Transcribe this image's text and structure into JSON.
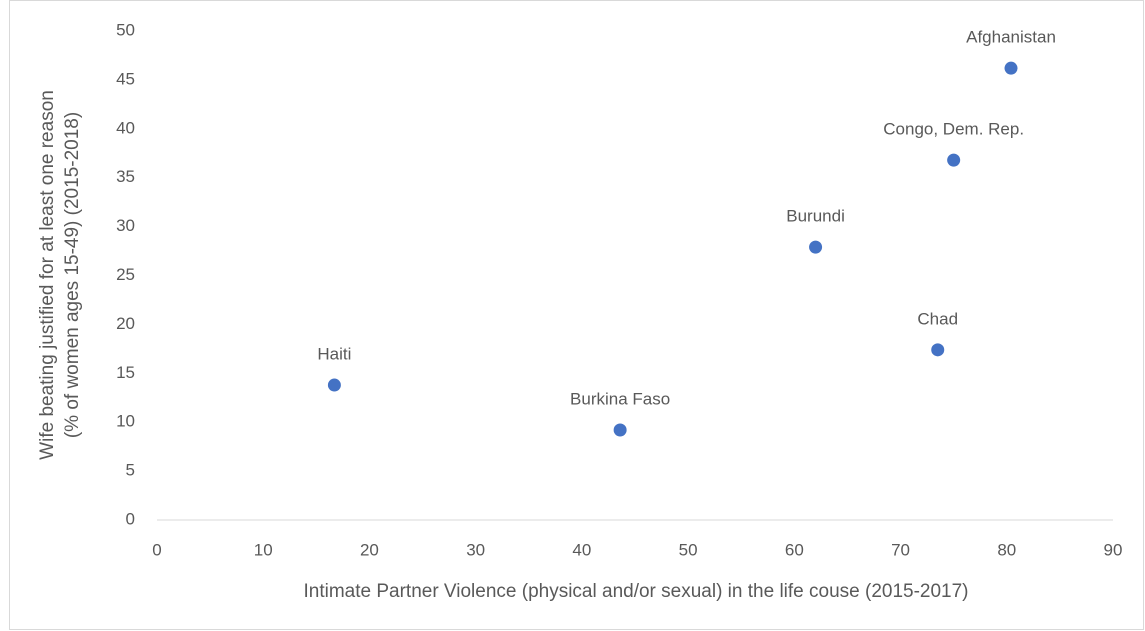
{
  "chart_data": {
    "type": "scatter",
    "x": [
      16.7,
      43.6,
      62.0,
      73.5,
      75.0,
      80.4
    ],
    "values": [
      13.8,
      9.2,
      27.9,
      17.4,
      36.8,
      46.2
    ],
    "labels": [
      "Haiti",
      "Burkina Faso",
      "Burundi",
      "Chad",
      "Congo, Dem. Rep.",
      "Afghanistan"
    ],
    "color": "#4472c4",
    "xlim": [
      0,
      90
    ],
    "xticks": [
      0,
      10,
      20,
      30,
      40,
      50,
      60,
      70,
      80,
      90
    ],
    "ylim": [
      0,
      50
    ],
    "yticks": [
      0,
      5,
      10,
      15,
      20,
      25,
      30,
      35,
      40,
      45,
      50
    ],
    "xlabel": "Intimate Partner Violence (physical and/or sexual) in the life couse (2015-2017)",
    "ylabel": [
      "Wife beating justified for at least one reason",
      "(% of women ages 15-49)  (2015-2018)"
    ],
    "grid": false
  }
}
